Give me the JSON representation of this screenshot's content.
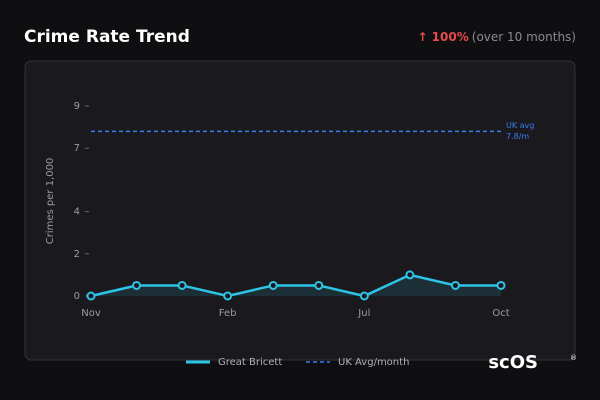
{
  "header": {
    "title": "Crime Rate Trend",
    "change": "↑ 100%",
    "period": "(over 10 months)"
  },
  "chart_data": {
    "type": "line",
    "y_label": "Crimes per 1,000",
    "categories": [
      "Nov",
      null,
      null,
      "Feb",
      null,
      null,
      "Jul",
      null,
      null,
      "Oct"
    ],
    "series": [
      {
        "name": "Great Bricett",
        "color": "#2ec4e6",
        "values": [
          0,
          0.5,
          0.5,
          0,
          0.5,
          0.5,
          0,
          1,
          0.5,
          0.5
        ]
      }
    ],
    "reference": {
      "name": "UK Avg/month",
      "color": "#3a7bf0",
      "value": 7.8,
      "label": "UK avg",
      "value_label": "7.8/m"
    },
    "ylim": [
      0,
      9
    ],
    "yticks": [
      0,
      2,
      4,
      7,
      9
    ],
    "grid": false
  },
  "brand": "scOS"
}
